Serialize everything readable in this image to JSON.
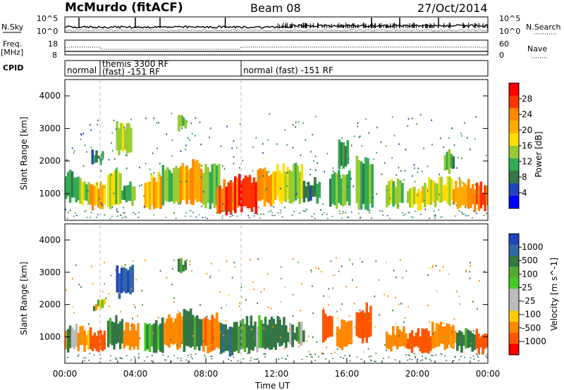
{
  "header": {
    "station": "McMurdo (fitACF)",
    "beam": "Beam 08",
    "date": "27/Oct/2014"
  },
  "noise_panel": {
    "left_label": "N.Sky",
    "right_label": "N.Search",
    "left_ticks": [
      "10^5",
      "10^0"
    ],
    "right_ticks": [
      "10^5",
      "10^0"
    ]
  },
  "freq_panel": {
    "left_label_1": "Freq.",
    "left_label_2": "[MHz]",
    "right_label": "Nave",
    "left_ticks": [
      "18",
      "8"
    ],
    "right_ticks": [
      "60",
      "0"
    ]
  },
  "cpid_panel": {
    "label": "CPID",
    "segments": [
      {
        "label": "normal",
        "start_hr": 0.0,
        "end_hr": 2.0
      },
      {
        "label": "themis 3300 RF",
        "label2": "(fast) -151 RF",
        "start_hr": 2.0,
        "end_hr": 10.0
      },
      {
        "label": "normal (fast) -151 RF",
        "start_hr": 10.0,
        "end_hr": 24.0
      }
    ]
  },
  "power_panel": {
    "ylabel": "Slant Range [km]",
    "colorbar_label": "Power [dB]",
    "colorbar_ticks": [
      "28",
      "24",
      "20",
      "16",
      "12",
      "8",
      "4"
    ],
    "colorbar_colors": [
      "#ff0000",
      "#ff3300",
      "#ff8800",
      "#ffaa00",
      "#ffdd00",
      "#99cc33",
      "#33aa55",
      "#337744",
      "#2244bb",
      "#0000ff"
    ]
  },
  "velocity_panel": {
    "ylabel": "Slant Range [km]",
    "colorbar_label": "Velocity [m s^-1]",
    "colorbar_ticks": [
      "1000",
      "500",
      "100",
      "25",
      "-25",
      "-100",
      "-500",
      "-1000"
    ],
    "colorbar_colors": [
      "#2244bb",
      "#3366aa",
      "#337744",
      "#55aa33",
      "#44cc22",
      "#bbbbbb",
      "#bbbbbb",
      "#ffcc00",
      "#ff8800",
      "#ff5500",
      "#ff0000"
    ]
  },
  "chart_data": [
    {
      "type": "heatmap",
      "name": "power",
      "x_range_hr": [
        0,
        24
      ],
      "y_range_km": [
        180,
        4500
      ],
      "y_ticks": [
        1000,
        2000,
        3000,
        4000
      ],
      "cells": [
        {
          "t0": 0.0,
          "t1": 0.7,
          "r0": 800,
          "r1": 1600,
          "v": 10
        },
        {
          "t0": 0.7,
          "t1": 1.4,
          "r0": 700,
          "r1": 1400,
          "v": 14
        },
        {
          "t0": 1.4,
          "t1": 2.3,
          "r0": 550,
          "r1": 1300,
          "v": 22
        },
        {
          "t0": 2.4,
          "t1": 3.2,
          "r0": 650,
          "r1": 1700,
          "v": 16
        },
        {
          "t0": 3.2,
          "t1": 4.0,
          "r0": 700,
          "r1": 1200,
          "v": 12
        },
        {
          "t0": 1.5,
          "t1": 2.2,
          "r0": 2000,
          "r1": 2200,
          "v": 8
        },
        {
          "t0": 2.9,
          "t1": 3.8,
          "r0": 2300,
          "r1": 3100,
          "v": 14
        },
        {
          "t0": 6.4,
          "t1": 6.9,
          "r0": 3000,
          "r1": 3400,
          "v": 12
        },
        {
          "t0": 4.5,
          "t1": 5.5,
          "r0": 600,
          "r1": 1500,
          "v": 20
        },
        {
          "t0": 5.5,
          "t1": 6.5,
          "r0": 700,
          "r1": 1800,
          "v": 14
        },
        {
          "t0": 6.5,
          "t1": 7.8,
          "r0": 700,
          "r1": 1900,
          "v": 22
        },
        {
          "t0": 7.8,
          "t1": 8.8,
          "r0": 600,
          "r1": 1800,
          "v": 12
        },
        {
          "t0": 8.6,
          "t1": 9.6,
          "r0": 450,
          "r1": 1300,
          "v": 28
        },
        {
          "t0": 9.6,
          "t1": 10.9,
          "r0": 500,
          "r1": 1500,
          "v": 30
        },
        {
          "t0": 10.9,
          "t1": 12.0,
          "r0": 700,
          "r1": 1700,
          "v": 22
        },
        {
          "t0": 12.0,
          "t1": 13.5,
          "r0": 800,
          "r1": 1800,
          "v": 16
        },
        {
          "t0": 13.5,
          "t1": 14.5,
          "r0": 800,
          "r1": 1400,
          "v": 8
        },
        {
          "t0": 15.0,
          "t1": 16.2,
          "r0": 650,
          "r1": 1600,
          "v": 10
        },
        {
          "t0": 16.5,
          "t1": 17.5,
          "r0": 600,
          "r1": 2000,
          "v": 12
        },
        {
          "t0": 18.2,
          "t1": 19.2,
          "r0": 650,
          "r1": 1300,
          "v": 14
        },
        {
          "t0": 19.4,
          "t1": 20.6,
          "r0": 600,
          "r1": 1200,
          "v": 18
        },
        {
          "t0": 20.6,
          "t1": 22.0,
          "r0": 700,
          "r1": 1400,
          "v": 16
        },
        {
          "t0": 22.0,
          "t1": 23.2,
          "r0": 600,
          "r1": 1300,
          "v": 22
        },
        {
          "t0": 23.2,
          "t1": 24.0,
          "r0": 550,
          "r1": 1200,
          "v": 26
        },
        {
          "t0": 15.5,
          "t1": 16.1,
          "r0": 1800,
          "r1": 2500,
          "v": 8
        },
        {
          "t0": 21.5,
          "t1": 22.1,
          "r0": 1700,
          "r1": 2300,
          "v": 10
        }
      ]
    },
    {
      "type": "heatmap",
      "name": "velocity",
      "x_range_hr": [
        0,
        24
      ],
      "x_ticks": [
        "00:00",
        "04:00",
        "08:00",
        "12:00",
        "16:00",
        "20:00",
        "00:00"
      ],
      "xlabel": "Time UT",
      "y_range_km": [
        180,
        4500
      ],
      "y_ticks": [
        1000,
        2000,
        3000,
        4000
      ],
      "cells": [
        {
          "t0": 0.0,
          "t1": 0.7,
          "r0": 600,
          "r1": 1300,
          "v": 0
        },
        {
          "t0": 0.7,
          "t1": 1.4,
          "r0": 650,
          "r1": 1200,
          "v": -200
        },
        {
          "t0": 1.4,
          "t1": 2.3,
          "r0": 550,
          "r1": 1200,
          "v": -600
        },
        {
          "t0": 2.4,
          "t1": 3.3,
          "r0": 700,
          "r1": 1500,
          "v": 200
        },
        {
          "t0": 3.3,
          "t1": 4.2,
          "r0": 700,
          "r1": 1300,
          "v": -300
        },
        {
          "t0": 1.6,
          "t1": 2.3,
          "r0": 1900,
          "r1": 2100,
          "v": 60
        },
        {
          "t0": 2.9,
          "t1": 3.9,
          "r0": 2300,
          "r1": 3100,
          "v": 800
        },
        {
          "t0": 6.4,
          "t1": 6.9,
          "r0": 3000,
          "r1": 3400,
          "v": 200
        },
        {
          "t0": 4.5,
          "t1": 5.6,
          "r0": 600,
          "r1": 1500,
          "v": 150
        },
        {
          "t0": 5.6,
          "t1": 6.7,
          "r0": 700,
          "r1": 1600,
          "v": -300
        },
        {
          "t0": 6.7,
          "t1": 7.8,
          "r0": 650,
          "r1": 1700,
          "v": 200
        },
        {
          "t0": 7.8,
          "t1": 8.8,
          "r0": 600,
          "r1": 1600,
          "v": -400
        },
        {
          "t0": 8.8,
          "t1": 9.8,
          "r0": 500,
          "r1": 1300,
          "v": 300
        },
        {
          "t0": 9.8,
          "t1": 11.2,
          "r0": 600,
          "r1": 1500,
          "v": 150
        },
        {
          "t0": 11.2,
          "t1": 12.6,
          "r0": 700,
          "r1": 1500,
          "v": 200
        },
        {
          "t0": 12.6,
          "t1": 13.6,
          "r0": 800,
          "r1": 1300,
          "v": 120
        },
        {
          "t0": 14.6,
          "t1": 15.2,
          "r0": 900,
          "r1": 1700,
          "v": -700
        },
        {
          "t0": 15.4,
          "t1": 16.3,
          "r0": 700,
          "r1": 1400,
          "v": -300
        },
        {
          "t0": 16.5,
          "t1": 17.4,
          "r0": 900,
          "r1": 1900,
          "v": -600
        },
        {
          "t0": 18.2,
          "t1": 19.4,
          "r0": 650,
          "r1": 1200,
          "v": -300
        },
        {
          "t0": 19.4,
          "t1": 20.8,
          "r0": 600,
          "r1": 1100,
          "v": -600
        },
        {
          "t0": 20.8,
          "t1": 22.2,
          "r0": 700,
          "r1": 1300,
          "v": -250
        },
        {
          "t0": 22.2,
          "t1": 23.3,
          "r0": 600,
          "r1": 1200,
          "v": 200
        },
        {
          "t0": 23.3,
          "t1": 24.0,
          "r0": 550,
          "r1": 1100,
          "v": -700
        }
      ]
    }
  ]
}
